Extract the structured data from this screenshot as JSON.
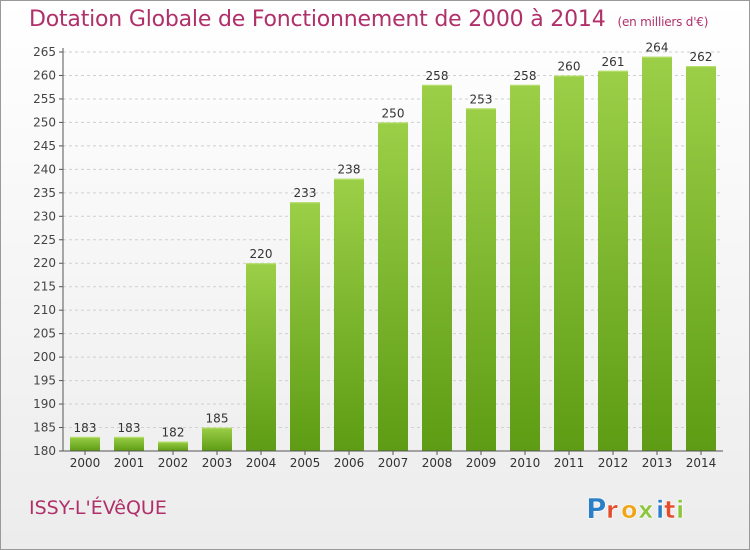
{
  "title": "Dotation Globale de Fonctionnement de 2000 à 2014",
  "unit_note": "(en milliers d'€)",
  "commune": "ISSY-L'ÉVêQUE",
  "logo": {
    "letters": [
      "P",
      "r",
      "o",
      "x",
      "i",
      "t",
      "i"
    ],
    "colors": [
      "#2b7fc6",
      "#e34d2b",
      "#f0a417",
      "#8cc63f",
      "#2b7fc6",
      "#e34d2b",
      "#8cc63f"
    ]
  },
  "colors": {
    "title": "#b0306a",
    "bar_top": "#9ccf48",
    "bar_bottom": "#5d9c14",
    "grid": "#cfcfcf"
  },
  "chart_data": {
    "type": "bar",
    "categories": [
      "2000",
      "2001",
      "2002",
      "2003",
      "2004",
      "2005",
      "2006",
      "2007",
      "2008",
      "2009",
      "2010",
      "2011",
      "2012",
      "2013",
      "2014"
    ],
    "values": [
      183,
      183,
      182,
      185,
      220,
      233,
      238,
      250,
      258,
      253,
      258,
      260,
      261,
      264,
      262
    ],
    "data_labels": [
      "183",
      "183",
      "182",
      "185",
      "220",
      "233",
      "238",
      "250",
      "258",
      "253",
      "258",
      "260",
      "261",
      "264",
      "262"
    ],
    "ylim": [
      180,
      265
    ],
    "yticks": [
      180,
      185,
      190,
      195,
      200,
      205,
      210,
      215,
      220,
      225,
      230,
      235,
      240,
      245,
      250,
      255,
      260,
      265
    ],
    "ytick_labels": [
      "180",
      "185",
      "190",
      "195",
      "200",
      "205",
      "210",
      "215",
      "220",
      "225",
      "230",
      "235",
      "240",
      "245",
      "250",
      "255",
      "260",
      "265"
    ],
    "grid": "horizontal dashed",
    "legend": "none"
  }
}
